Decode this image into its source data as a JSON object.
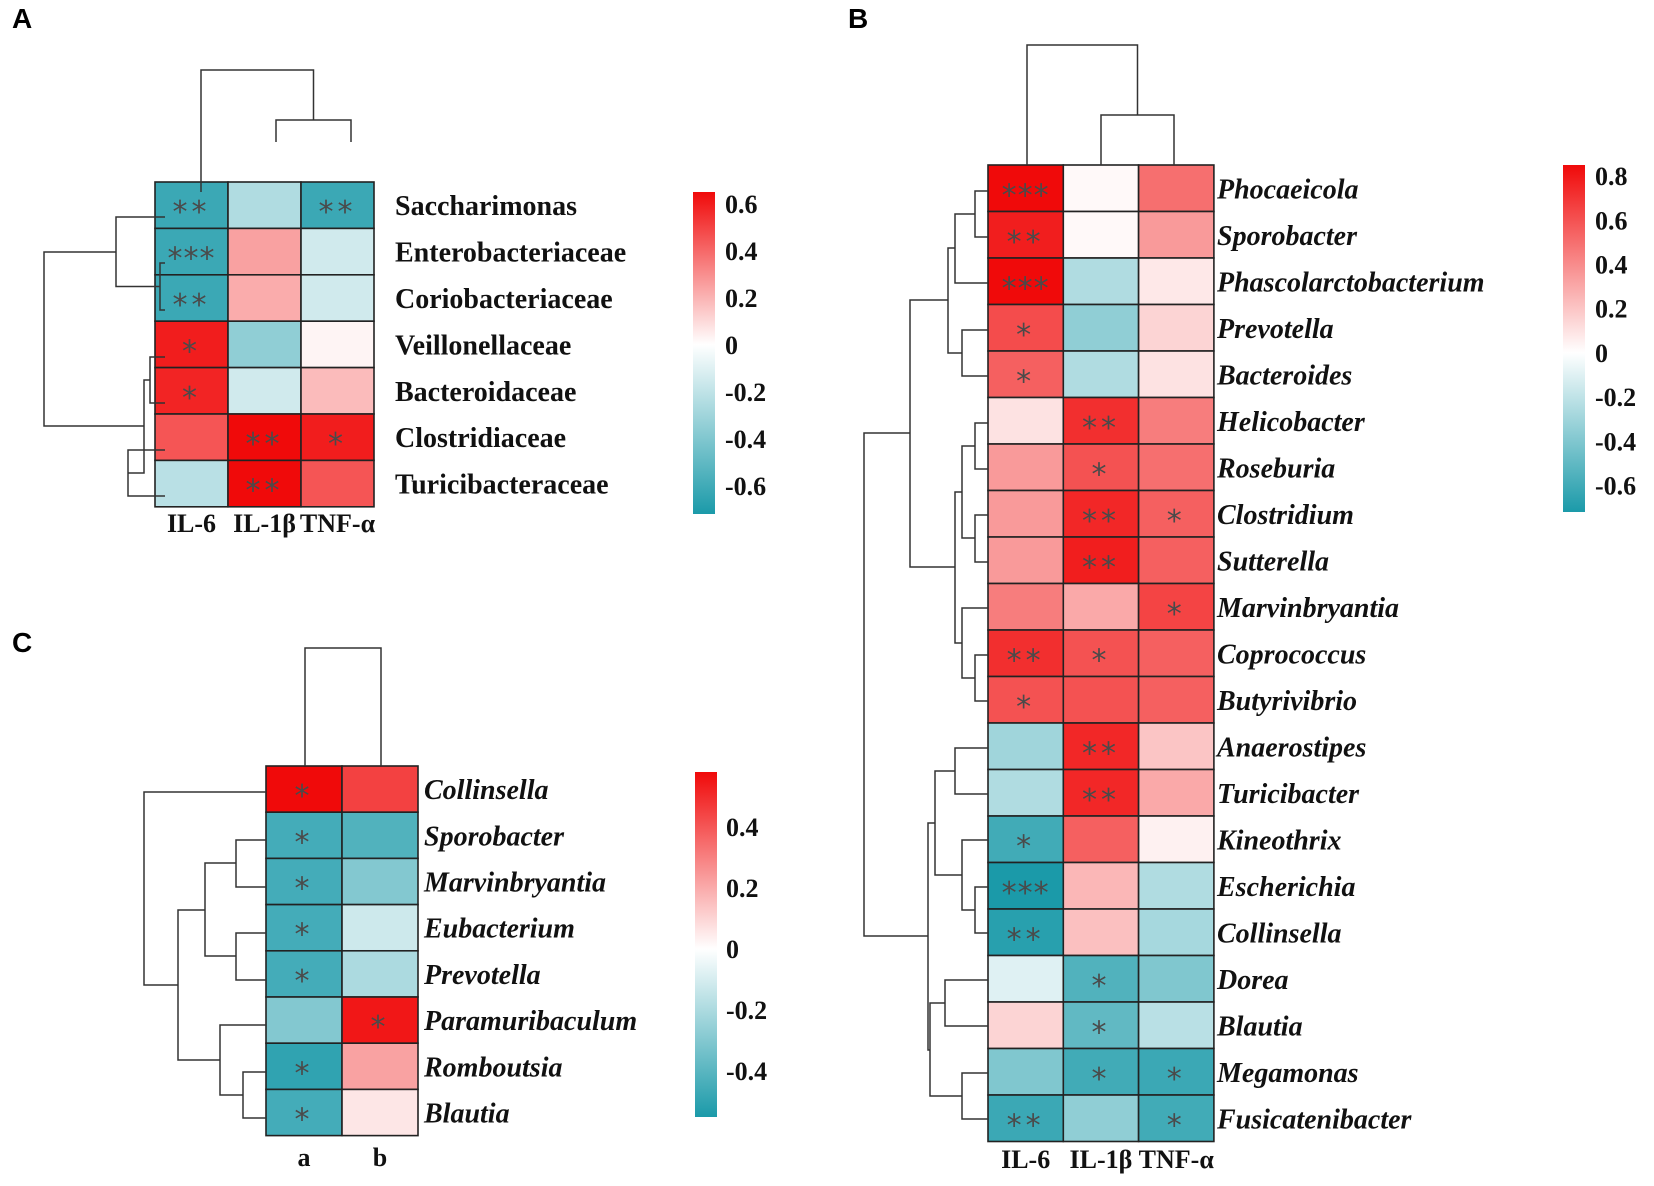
{
  "colors": {
    "neg": "#1b9aa9",
    "mid": "#ffffff",
    "pos": "#f00a0a"
  },
  "chart_data": [
    {
      "panel": "A",
      "type": "heatmap",
      "rows": [
        "Saccharimonas",
        "Enterobacteriaceae",
        "Coriobacteriaceae",
        "Veillonellaceae",
        "Bacteroidaceae",
        "Clostridiaceae",
        "Turicibacteraceae"
      ],
      "cols": [
        "IL-6",
        "IL-1β",
        "TNF-α"
      ],
      "values": [
        [
          -0.62,
          -0.25,
          -0.62
        ],
        [
          -0.62,
          0.25,
          -0.15
        ],
        [
          -0.62,
          0.22,
          -0.15
        ],
        [
          0.6,
          -0.35,
          0.03
        ],
        [
          0.58,
          -0.15,
          0.18
        ],
        [
          0.45,
          0.65,
          0.6
        ],
        [
          -0.22,
          0.65,
          0.45
        ]
      ],
      "stars": [
        [
          "**",
          "",
          "**"
        ],
        [
          "***",
          "",
          ""
        ],
        [
          "**",
          "",
          ""
        ],
        [
          "*",
          "",
          ""
        ],
        [
          "*",
          "",
          ""
        ],
        [
          "",
          "**",
          "*"
        ],
        [
          "",
          "**",
          ""
        ]
      ],
      "legend_ticks": [
        "0.6",
        "0.4",
        "0.2",
        "0",
        "-0.2",
        "-0.4",
        "-0.6"
      ],
      "legend_tick_values": [
        0.6,
        0.4,
        0.2,
        0,
        -0.2,
        -0.4,
        -0.6
      ],
      "legend_range": [
        -0.72,
        0.65
      ]
    },
    {
      "panel": "B",
      "type": "heatmap",
      "rows": [
        "Phocaeicola",
        "Sporobacter",
        "Phascolarctobacterium",
        "Prevotella",
        "Bacteroides",
        "Helicobacter",
        "Roseburia",
        "Clostridium",
        "Sutterella",
        "Marvinbryantia",
        "Coprococcus",
        "Butyrivibrio",
        "Anaerostipes",
        "Turicibacter",
        "Kineothrix",
        "Escherichia",
        "Collinsella",
        "Dorea",
        "Blautia",
        "Megamonas",
        "Fusicatenibacter"
      ],
      "cols": [
        "IL-6",
        "IL-1β",
        "TNF-α"
      ],
      "values": [
        [
          0.85,
          0.02,
          0.5
        ],
        [
          0.78,
          0.02,
          0.35
        ],
        [
          0.85,
          -0.25,
          0.08
        ],
        [
          0.62,
          -0.35,
          0.15
        ],
        [
          0.55,
          -0.25,
          0.1
        ],
        [
          0.1,
          0.72,
          0.45
        ],
        [
          0.35,
          0.6,
          0.5
        ],
        [
          0.35,
          0.75,
          0.55
        ],
        [
          0.35,
          0.78,
          0.55
        ],
        [
          0.45,
          0.3,
          0.65
        ],
        [
          0.72,
          0.6,
          0.55
        ],
        [
          0.6,
          0.6,
          0.55
        ],
        [
          -0.3,
          0.75,
          0.2
        ],
        [
          -0.25,
          0.75,
          0.3
        ],
        [
          -0.6,
          0.55,
          0.05
        ],
        [
          -0.72,
          0.25,
          -0.25
        ],
        [
          -0.68,
          0.22,
          -0.28
        ],
        [
          -0.1,
          -0.55,
          -0.4
        ],
        [
          0.15,
          -0.5,
          -0.22
        ],
        [
          -0.4,
          -0.6,
          -0.62
        ],
        [
          -0.62,
          -0.35,
          -0.6
        ]
      ],
      "stars": [
        [
          "***",
          "",
          ""
        ],
        [
          "**",
          "",
          ""
        ],
        [
          "***",
          "",
          ""
        ],
        [
          "*",
          "",
          ""
        ],
        [
          "*",
          "",
          ""
        ],
        [
          "",
          "**",
          ""
        ],
        [
          "",
          "*",
          ""
        ],
        [
          "",
          "**",
          "*"
        ],
        [
          "",
          "**",
          ""
        ],
        [
          "",
          "",
          "*"
        ],
        [
          "**",
          "*",
          ""
        ],
        [
          "*",
          "",
          ""
        ],
        [
          "",
          "**",
          ""
        ],
        [
          "",
          "**",
          ""
        ],
        [
          "*",
          "",
          ""
        ],
        [
          "***",
          "",
          ""
        ],
        [
          "**",
          "",
          ""
        ],
        [
          "",
          "*",
          ""
        ],
        [
          "",
          "*",
          ""
        ],
        [
          "",
          "*",
          "*"
        ],
        [
          "**",
          "",
          "*"
        ]
      ],
      "legend_ticks": [
        "0.8",
        "0.6",
        "0.4",
        "0.2",
        "0",
        "-0.2",
        "-0.4",
        "-0.6"
      ],
      "legend_tick_values": [
        0.8,
        0.6,
        0.4,
        0.2,
        0,
        -0.2,
        -0.4,
        -0.6
      ],
      "legend_range": [
        -0.72,
        0.85
      ]
    },
    {
      "panel": "C",
      "type": "heatmap",
      "rows": [
        "Collinsella",
        "Sporobacter",
        "Marvinbryantia",
        "Eubacterium",
        "Prevotella",
        "Paramuribaculum",
        "Romboutsia",
        "Blautia"
      ],
      "cols": [
        "a",
        "b"
      ],
      "values": [
        [
          0.58,
          0.45
        ],
        [
          -0.45,
          -0.42
        ],
        [
          -0.45,
          -0.3
        ],
        [
          -0.45,
          -0.12
        ],
        [
          -0.45,
          -0.2
        ],
        [
          -0.3,
          0.55
        ],
        [
          -0.5,
          0.22
        ],
        [
          -0.45,
          0.06
        ]
      ],
      "stars": [
        [
          "*",
          ""
        ],
        [
          "*",
          ""
        ],
        [
          "*",
          ""
        ],
        [
          "*",
          ""
        ],
        [
          "*",
          ""
        ],
        [
          "",
          "*"
        ],
        [
          "*",
          ""
        ],
        [
          "*",
          ""
        ]
      ],
      "legend_ticks": [
        "0.4",
        "0.2",
        "0",
        "-0.2",
        "-0.4"
      ],
      "legend_tick_values": [
        0.4,
        0.2,
        0,
        -0.2,
        -0.4
      ],
      "legend_range": [
        -0.55,
        0.58
      ]
    }
  ]
}
